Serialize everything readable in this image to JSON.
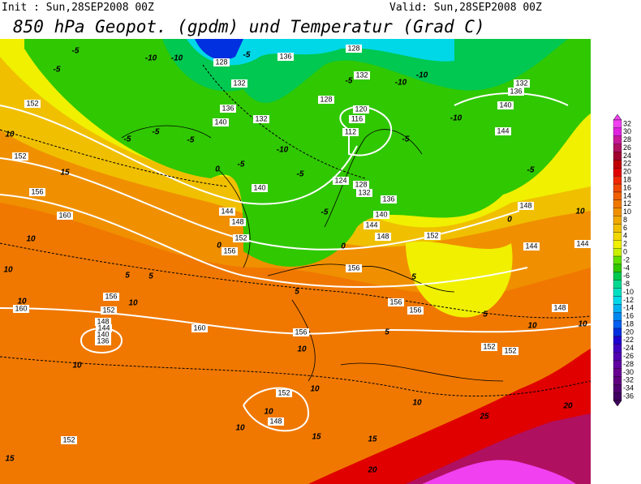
{
  "header": {
    "init": "Init : Sun,28SEP2008 00Z",
    "valid": "Valid: Sun,28SEP2008 00Z",
    "title": "850 hPa Geopot. (gpdm) und Temperatur (Grad C)"
  },
  "map": {
    "geopotential_labels": [
      152,
      152,
      156,
      160,
      160,
      156,
      152,
      148,
      144,
      140,
      136,
      160,
      156,
      152,
      148,
      152,
      156,
      156,
      152,
      152,
      148,
      144,
      144,
      148,
      152,
      156,
      152,
      156,
      148,
      144,
      140,
      136,
      140,
      132,
      132,
      128,
      136,
      128,
      132,
      128,
      120,
      116,
      112,
      124,
      128,
      132,
      136,
      140,
      144,
      148,
      132,
      136,
      140,
      144
    ],
    "temperature_labels": [
      10,
      15,
      10,
      10,
      5,
      5,
      10,
      10,
      10,
      10,
      10,
      10,
      10,
      15,
      15,
      15,
      20,
      25,
      20,
      10,
      10,
      10,
      5,
      5,
      5,
      0,
      0,
      0,
      0,
      5,
      -5,
      -5,
      -5,
      -5,
      -5,
      -5,
      -10,
      -10,
      -10,
      -10,
      -5,
      -5,
      -5,
      10,
      -5,
      -5,
      -10,
      -10,
      -5
    ],
    "colorbar": {
      "ticks": [
        32,
        30,
        28,
        26,
        24,
        22,
        20,
        18,
        16,
        14,
        12,
        10,
        8,
        6,
        4,
        2,
        0,
        -2,
        -4,
        -6,
        -8,
        -10,
        -12,
        -14,
        -16,
        -18,
        -20,
        -22,
        -24,
        -26,
        -28,
        -30,
        -32,
        -34,
        -36
      ],
      "colors": [
        "#f040f0",
        "#e020e0",
        "#c8189a",
        "#b01060",
        "#a00030",
        "#c00000",
        "#e00000",
        "#f02800",
        "#f04800",
        "#f06000",
        "#f07800",
        "#f09000",
        "#f0a800",
        "#f0c000",
        "#f0d800",
        "#f0f000",
        "#c8f000",
        "#60e000",
        "#30c800",
        "#00c850",
        "#00d890",
        "#00e0c0",
        "#00d8e8",
        "#00b0f0",
        "#0088f0",
        "#0060f0",
        "#0030e0",
        "#2000d0",
        "#4000c0",
        "#5000b0",
        "#6000a0",
        "#680090",
        "#600080",
        "#500070",
        "#400060"
      ]
    }
  }
}
